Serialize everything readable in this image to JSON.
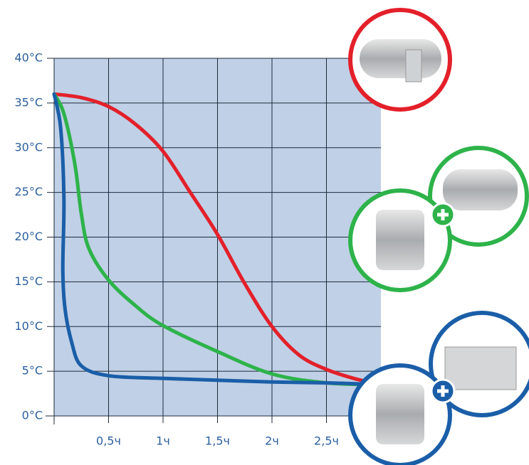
{
  "chart_data": {
    "type": "line",
    "xlim": [
      0,
      3
    ],
    "ylim": [
      0,
      40
    ],
    "xticks": [
      {
        "value": 0.5,
        "label": "0,5ч"
      },
      {
        "value": 1,
        "label": "1ч"
      },
      {
        "value": 1.5,
        "label": "1,5ч"
      },
      {
        "value": 2,
        "label": "2ч"
      },
      {
        "value": 2.5,
        "label": "2,5ч"
      }
    ],
    "yticks": [
      {
        "value": 0,
        "label": "0°C"
      },
      {
        "value": 5,
        "label": "5°C"
      },
      {
        "value": 10,
        "label": "10°C"
      },
      {
        "value": 15,
        "label": "15°C"
      },
      {
        "value": 20,
        "label": "20°C"
      },
      {
        "value": 25,
        "label": "25°C"
      },
      {
        "value": 30,
        "label": "30°C"
      },
      {
        "value": 35,
        "label": "35°C"
      },
      {
        "value": 40,
        "label": "40°C"
      }
    ],
    "grid": true,
    "series": [
      {
        "color": "#e3202a",
        "x": [
          0,
          0.25,
          0.5,
          0.75,
          1,
          1.25,
          1.5,
          1.75,
          2,
          2.25,
          2.5,
          2.75,
          3
        ],
        "values": [
          36,
          35.6,
          34.6,
          32.6,
          29.6,
          25,
          20.3,
          14.8,
          10,
          6.8,
          5.2,
          4.2,
          3.5
        ]
      },
      {
        "color": "#2db34a",
        "x": [
          0,
          0.09,
          0.19,
          0.25,
          0.32,
          0.5,
          0.75,
          1,
          1.5,
          2,
          2.5,
          3
        ],
        "values": [
          36,
          33.8,
          28.2,
          22.6,
          18.7,
          15.2,
          12.3,
          10.1,
          7.2,
          4.7,
          3.7,
          3.5
        ]
      },
      {
        "color": "#1a5ea8",
        "x": [
          0,
          0.06,
          0.09,
          0.08,
          0.1,
          0.16,
          0.25,
          0.5,
          1,
          1.5,
          2,
          2.5,
          3
        ],
        "values": [
          36,
          32.2,
          24.3,
          16.4,
          12,
          8.3,
          5.6,
          4.5,
          4.2,
          4,
          3.8,
          3.7,
          3.5
        ]
      }
    ]
  }
}
